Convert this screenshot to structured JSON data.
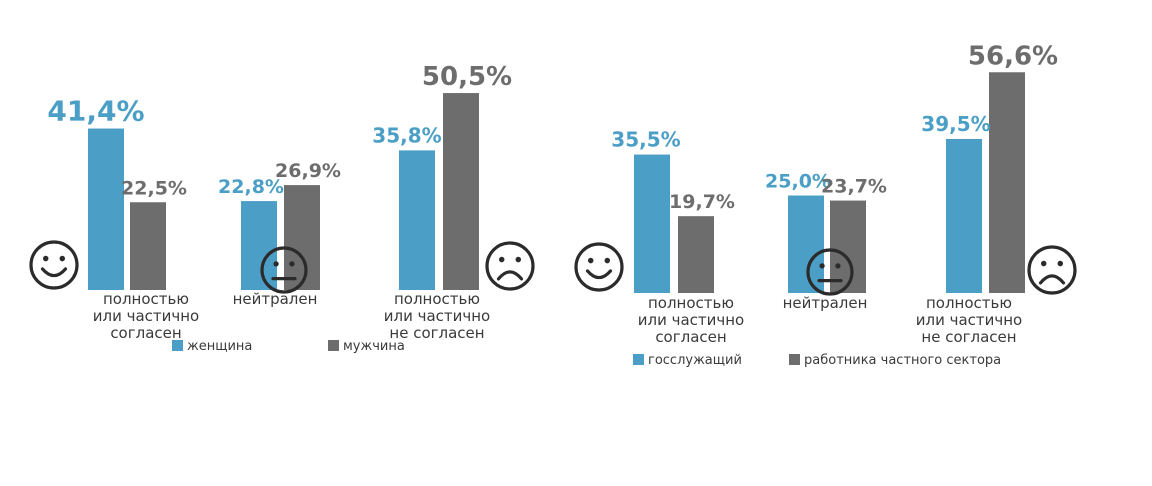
{
  "colors": {
    "series_a": "#4b9fc6",
    "series_b": "#6d6d6d"
  },
  "chart_data": [
    {
      "type": "bar",
      "categories": [
        [
          "полностью",
          "или частично",
          "согласен"
        ],
        [
          "нейтрален"
        ],
        [
          "полностью",
          "или частично",
          "не согласен"
        ]
      ],
      "category_icons": [
        "smile-icon",
        "neutral-face-icon",
        "sad-face-icon"
      ],
      "series": [
        {
          "name": "женщина",
          "values": [
            41.4,
            22.8,
            35.8
          ],
          "labels": [
            "41,4%",
            "22,8%",
            "35,8%"
          ]
        },
        {
          "name": "мужчина",
          "values": [
            22.5,
            26.9,
            50.5
          ],
          "labels": [
            "22,5%",
            "26,9%",
            "50,5%"
          ]
        }
      ],
      "legend_position": "bottom",
      "ylim": [
        0,
        55
      ],
      "grid": false
    },
    {
      "type": "bar",
      "categories": [
        [
          "полностью",
          "или частично",
          "согласен"
        ],
        [
          "нейтрален"
        ],
        [
          "полностью",
          "или частично",
          "не согласен"
        ]
      ],
      "category_icons": [
        "smile-icon",
        "neutral-face-icon",
        "sad-face-icon"
      ],
      "series": [
        {
          "name": "госслужащий",
          "values": [
            35.5,
            25.0,
            39.5
          ],
          "labels": [
            "35,5%",
            "25,0%",
            "39,5%"
          ]
        },
        {
          "name": "работника частного сектора",
          "values": [
            19.7,
            23.7,
            56.6
          ],
          "labels": [
            "19,7%",
            "23,7%",
            "56,6%"
          ]
        }
      ],
      "legend_position": "bottom",
      "ylim": [
        0,
        62
      ],
      "grid": false
    }
  ]
}
